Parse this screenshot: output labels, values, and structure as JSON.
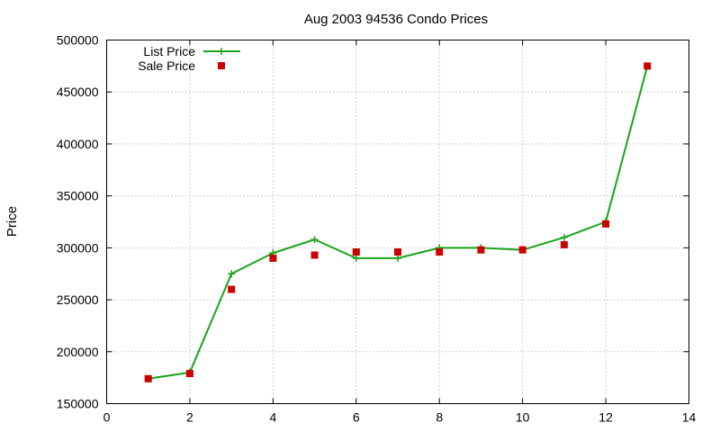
{
  "chart_data": {
    "type": "line",
    "title": "Aug 2003 94536 Condo Prices",
    "xlabel": "",
    "ylabel": "Price",
    "xlim": [
      0,
      14
    ],
    "ylim": [
      150000,
      500000
    ],
    "x_ticks": [
      "0",
      "2",
      "4",
      "6",
      "8",
      "10",
      "12",
      "14"
    ],
    "y_ticks": [
      "150000",
      "200000",
      "250000",
      "300000",
      "350000",
      "400000",
      "450000",
      "500000"
    ],
    "grid": true,
    "legend_position": "top-left",
    "x": [
      1,
      2,
      3,
      4,
      5,
      6,
      7,
      8,
      9,
      10,
      11,
      12,
      13
    ],
    "series": [
      {
        "name": "List Price",
        "style": "line-with-plus-markers",
        "color": "#1aa31a",
        "values": [
          174000,
          180000,
          275000,
          295000,
          308000,
          290000,
          290000,
          300000,
          300000,
          298000,
          310000,
          325000,
          475000
        ]
      },
      {
        "name": "Sale Price",
        "style": "square-markers",
        "color": "#cc0000",
        "values": [
          174000,
          179000,
          260000,
          290000,
          293000,
          296000,
          296000,
          296000,
          298000,
          298000,
          303000,
          323000,
          475000
        ]
      }
    ]
  }
}
